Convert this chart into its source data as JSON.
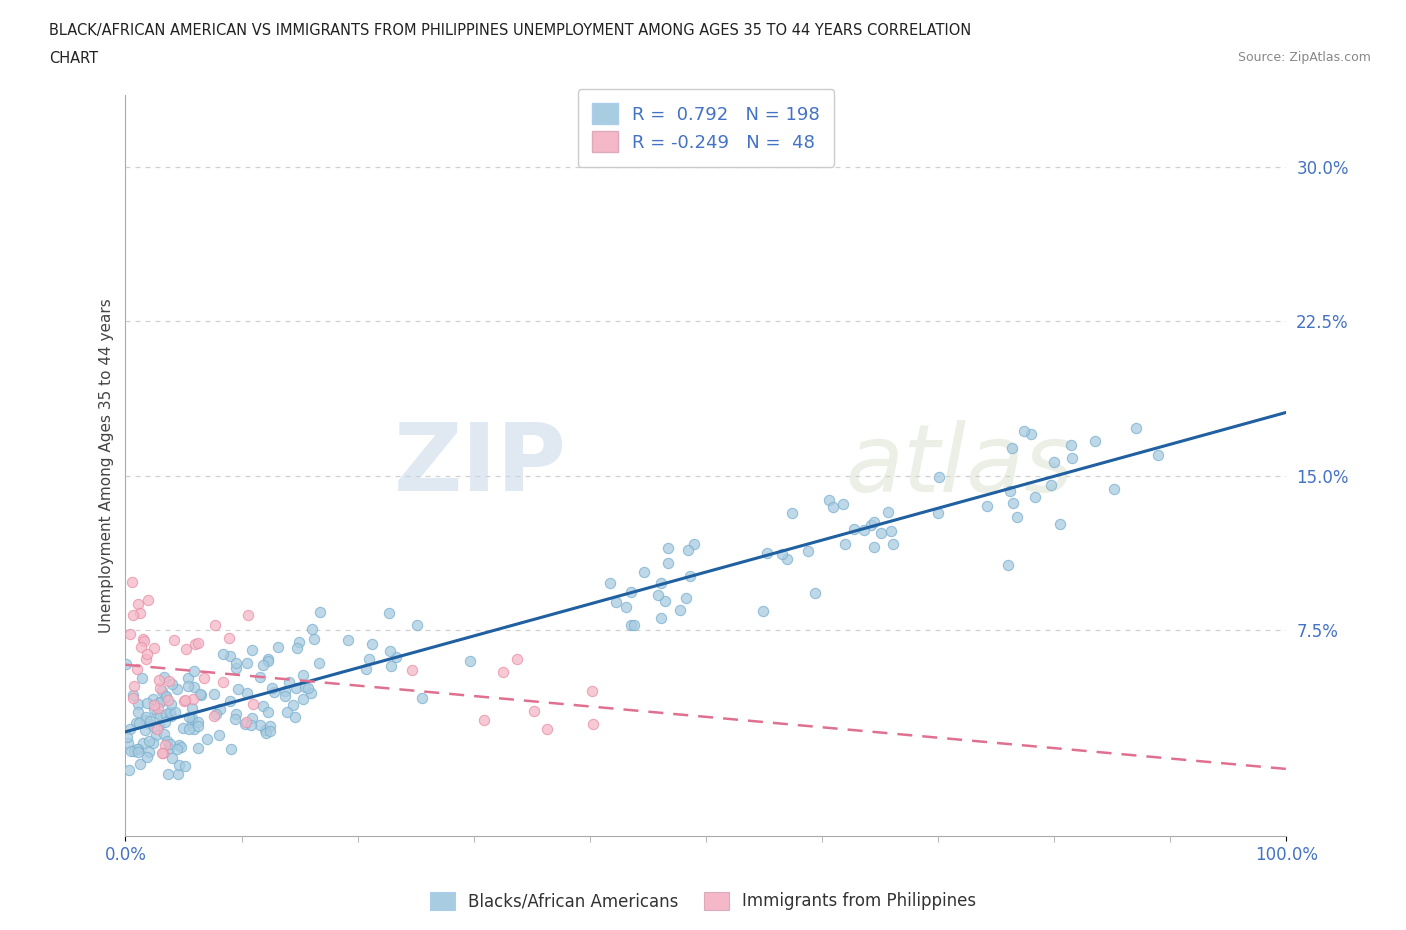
{
  "title_line1": "BLACK/AFRICAN AMERICAN VS IMMIGRANTS FROM PHILIPPINES UNEMPLOYMENT AMONG AGES 35 TO 44 YEARS CORRELATION",
  "title_line2": "CHART",
  "source_text": "Source: ZipAtlas.com",
  "ylabel": "Unemployment Among Ages 35 to 44 years",
  "xlim": [
    0.0,
    1.0
  ],
  "ylim": [
    -0.025,
    0.335
  ],
  "ytick_values": [
    0.075,
    0.15,
    0.225,
    0.3
  ],
  "ytick_labels": [
    "7.5%",
    "15.0%",
    "22.5%",
    "30.0%"
  ],
  "blue_fill_color": "#a8cce0",
  "blue_edge_color": "#7ab0d0",
  "pink_fill_color": "#f4b8c8",
  "pink_edge_color": "#e890a8",
  "blue_line_color": "#2060a0",
  "pink_line_color": "#e07090",
  "r_blue": 0.792,
  "n_blue": 198,
  "r_pink": -0.249,
  "n_pink": 48,
  "watermark_zip": "ZIP",
  "watermark_atlas": "atlas",
  "legend_label_blue": "Blacks/African Americans",
  "legend_label_pink": "Immigrants from Philippines",
  "tick_color": "#4472c4",
  "grid_color": "#d0d0d0",
  "title_color": "#222222",
  "ylabel_color": "#444444"
}
